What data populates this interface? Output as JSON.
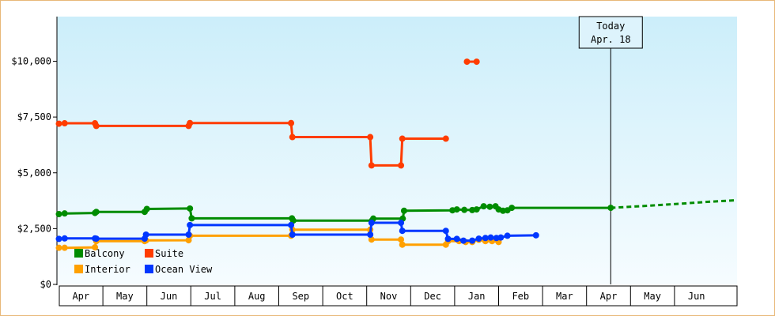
{
  "chart_data": {
    "type": "line",
    "line_style": "step",
    "title": "",
    "xlabel": "",
    "ylabel": "",
    "ylim": [
      0,
      12000
    ],
    "yticks": [
      "$0",
      "$2,500",
      "$5,000",
      "$7,500",
      "$10,000"
    ],
    "ytick_values": [
      0,
      2500,
      5000,
      7500,
      10000
    ],
    "x_months": [
      "Apr",
      "May",
      "Jun",
      "Jul",
      "Aug",
      "Sep",
      "Oct",
      "Nov",
      "Dec",
      "Jan",
      "Feb",
      "Mar",
      "Apr",
      "May",
      "Jun"
    ],
    "xlim": [
      -0.05,
      15.4
    ],
    "grid": false,
    "legend_position": "bottom-left",
    "background": {
      "top": "#cceefa",
      "bottom": "#f6fcff"
    },
    "today_marker": {
      "line1": "Today",
      "line2": "Apr. 18",
      "x": 12.55
    },
    "series": [
      {
        "name": "Balcony",
        "color": "#008c00",
        "points": [
          [
            0,
            3150
          ],
          [
            0.13,
            3180
          ],
          [
            0.82,
            3200
          ],
          [
            0.85,
            3250
          ],
          [
            1.95,
            3250
          ],
          [
            2.0,
            3380
          ],
          [
            2.98,
            3400
          ],
          [
            3.02,
            2960
          ],
          [
            5.3,
            2960
          ],
          [
            5.33,
            2860
          ],
          [
            7.12,
            2860
          ],
          [
            7.15,
            2950
          ],
          [
            7.82,
            2950
          ],
          [
            7.85,
            3300
          ],
          [
            8.95,
            3320
          ],
          [
            9.05,
            3360
          ],
          [
            9.22,
            3340
          ],
          [
            9.4,
            3330
          ],
          [
            9.5,
            3360
          ],
          [
            9.66,
            3500
          ],
          [
            9.8,
            3480
          ],
          [
            9.93,
            3500
          ],
          [
            10.0,
            3360
          ],
          [
            10.1,
            3300
          ],
          [
            10.2,
            3320
          ],
          [
            10.3,
            3430
          ],
          [
            12.55,
            3430
          ]
        ],
        "projection": [
          [
            12.55,
            3430
          ],
          [
            12.9,
            3470
          ],
          [
            13.45,
            3530
          ],
          [
            14.1,
            3610
          ],
          [
            14.75,
            3700
          ],
          [
            15.4,
            3770
          ]
        ]
      },
      {
        "name": "Suite",
        "color": "#ff3c00",
        "points": [
          [
            0,
            7200
          ],
          [
            0.13,
            7220
          ],
          [
            0.82,
            7220
          ],
          [
            0.85,
            7100
          ],
          [
            2.95,
            7100
          ],
          [
            2.98,
            7230
          ],
          [
            5.28,
            7230
          ],
          [
            5.31,
            6600
          ],
          [
            7.08,
            6600
          ],
          [
            7.11,
            5330
          ],
          [
            7.78,
            5330
          ],
          [
            7.81,
            6530
          ],
          [
            8.8,
            6530
          ]
        ],
        "extra_points": [
          [
            9.28,
            9980
          ],
          [
            9.5,
            9980
          ]
        ]
      },
      {
        "name": "Interior",
        "color": "#ffa000",
        "points": [
          [
            0,
            1640
          ],
          [
            0.13,
            1640
          ],
          [
            0.82,
            1660
          ],
          [
            0.85,
            1940
          ],
          [
            1.95,
            1940
          ],
          [
            1.98,
            1970
          ],
          [
            2.95,
            1980
          ],
          [
            2.98,
            2180
          ],
          [
            5.28,
            2180
          ],
          [
            5.31,
            2450
          ],
          [
            7.08,
            2450
          ],
          [
            7.11,
            2010
          ],
          [
            7.78,
            2010
          ],
          [
            7.81,
            1780
          ],
          [
            8.8,
            1780
          ],
          [
            8.85,
            1940
          ],
          [
            9.1,
            1940
          ],
          [
            9.25,
            1900
          ],
          [
            9.4,
            1900
          ],
          [
            9.55,
            2000
          ],
          [
            9.7,
            1940
          ],
          [
            9.85,
            1940
          ],
          [
            10.0,
            1900
          ]
        ]
      },
      {
        "name": "Ocean View",
        "color": "#0037ff",
        "points": [
          [
            0,
            2040
          ],
          [
            0.13,
            2060
          ],
          [
            0.82,
            2060
          ],
          [
            0.85,
            2050
          ],
          [
            1.95,
            2050
          ],
          [
            1.98,
            2230
          ],
          [
            2.95,
            2230
          ],
          [
            2.98,
            2660
          ],
          [
            5.28,
            2660
          ],
          [
            5.31,
            2230
          ],
          [
            7.08,
            2230
          ],
          [
            7.11,
            2760
          ],
          [
            7.78,
            2760
          ],
          [
            7.81,
            2400
          ],
          [
            8.8,
            2400
          ],
          [
            8.85,
            2040
          ],
          [
            9.05,
            2040
          ],
          [
            9.2,
            1960
          ],
          [
            9.4,
            1960
          ],
          [
            9.55,
            2050
          ],
          [
            9.7,
            2080
          ],
          [
            9.82,
            2100
          ],
          [
            9.95,
            2080
          ],
          [
            10.05,
            2100
          ],
          [
            10.2,
            2180
          ],
          [
            10.85,
            2200
          ]
        ]
      }
    ]
  }
}
